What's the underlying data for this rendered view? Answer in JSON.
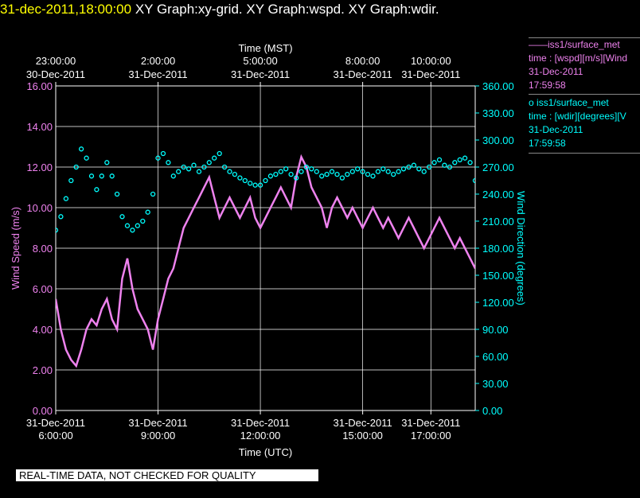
{
  "header": {
    "timestamp": "31-dec-2011,18:00:00",
    "graphs": [
      "XY Graph:xy-grid.",
      "XY Graph:wspd.",
      "XY Graph:wdir."
    ]
  },
  "legend": [
    {
      "marker": "——",
      "source": "iss1/surface_met",
      "series": "time : [wspd][m/s][Wind",
      "date": "31-Dec-2011",
      "time": "17:59:58",
      "color": "#ee82ee"
    },
    {
      "marker": "o",
      "source": "iss1/surface_met",
      "series": "time : [wdir][degrees][V",
      "date": "31-Dec-2011",
      "time": "17:59:58",
      "color": "#00ffff"
    }
  ],
  "footer": {
    "quality_note": "REAL-TIME DATA, NOT CHECKED FOR QUALITY"
  },
  "chart_data": {
    "type": "line",
    "xlabel_bottom": "Time (UTC)",
    "xlabel_top": "Time (MST)",
    "ylabel_left": "Wind Speed (m/s)",
    "ylabel_right": "Wind Direction (degrees)",
    "x_range_utc_hours": [
      6.0,
      18.3
    ],
    "ylim_left": [
      0,
      16
    ],
    "ylim_right": [
      0,
      360
    ],
    "grid": true,
    "colors": {
      "speed": "#ee82ee",
      "direction": "#00ffff",
      "grid": "#ffffff",
      "axis_right": "#00ffff"
    },
    "bottom_ticks": [
      {
        "hour": 6.0,
        "date": "31-Dec-2011",
        "time": "6:00:00"
      },
      {
        "hour": 9.0,
        "date": "31-Dec-2011",
        "time": "9:00:00"
      },
      {
        "hour": 12.0,
        "date": "31-Dec-2011",
        "time": "12:00:00"
      },
      {
        "hour": 15.0,
        "date": "31-Dec-2011",
        "time": "15:00:00"
      },
      {
        "hour": 17.0,
        "date": "31-Dec-2011",
        "time": "17:00:00"
      }
    ],
    "top_ticks": [
      {
        "hour": 6.0,
        "time": "23:00:00",
        "date": "30-Dec-2011"
      },
      {
        "hour": 9.0,
        "time": "2:00:00",
        "date": "31-Dec-2011"
      },
      {
        "hour": 12.0,
        "time": "5:00:00",
        "date": "31-Dec-2011"
      },
      {
        "hour": 15.0,
        "time": "8:00:00",
        "date": "31-Dec-2011"
      },
      {
        "hour": 17.0,
        "time": "10:00:00",
        "date": "31-Dec-2011"
      }
    ],
    "left_ticks": [
      "0.00",
      "2.00",
      "4.00",
      "6.00",
      "8.00",
      "10.00",
      "12.00",
      "14.00",
      "16.00"
    ],
    "right_ticks": [
      "0.00",
      "30.00",
      "60.00",
      "90.00",
      "120.00",
      "150.00",
      "180.00",
      "210.00",
      "240.00",
      "270.00",
      "300.00",
      "330.00",
      "360.00"
    ],
    "series": [
      {
        "name": "wspd",
        "axis": "left",
        "x": [
          6.0,
          6.15,
          6.3,
          6.45,
          6.6,
          6.75,
          6.9,
          7.05,
          7.2,
          7.35,
          7.5,
          7.65,
          7.8,
          7.95,
          8.1,
          8.25,
          8.4,
          8.55,
          8.7,
          8.85,
          9.0,
          9.15,
          9.3,
          9.45,
          9.6,
          9.75,
          9.9,
          10.05,
          10.2,
          10.35,
          10.5,
          10.65,
          10.8,
          10.95,
          11.1,
          11.25,
          11.4,
          11.55,
          11.7,
          11.85,
          12.0,
          12.15,
          12.3,
          12.45,
          12.6,
          12.75,
          12.9,
          13.05,
          13.2,
          13.35,
          13.5,
          13.65,
          13.8,
          13.95,
          14.1,
          14.25,
          14.4,
          14.55,
          14.7,
          14.85,
          15.0,
          15.15,
          15.3,
          15.45,
          15.6,
          15.75,
          15.9,
          16.05,
          16.2,
          16.35,
          16.5,
          16.65,
          16.8,
          16.95,
          17.1,
          17.25,
          17.4,
          17.55,
          17.7,
          17.85,
          18.0,
          18.15,
          18.3
        ],
        "values": [
          5.5,
          4.0,
          3.0,
          2.5,
          2.2,
          3.0,
          4.0,
          4.5,
          4.2,
          5.0,
          5.5,
          4.5,
          4.0,
          6.5,
          7.5,
          6.0,
          5.0,
          4.5,
          4.0,
          3.0,
          4.5,
          5.5,
          6.5,
          7.0,
          8.0,
          9.0,
          9.5,
          10.0,
          10.5,
          11.0,
          11.5,
          10.5,
          9.5,
          10.0,
          10.5,
          10.0,
          9.5,
          10.0,
          10.5,
          9.5,
          9.0,
          9.5,
          10.0,
          10.5,
          11.0,
          10.5,
          10.0,
          11.5,
          12.5,
          12.0,
          11.0,
          10.5,
          10.0,
          9.0,
          10.0,
          10.5,
          10.0,
          9.5,
          10.0,
          9.5,
          9.0,
          9.5,
          10.0,
          9.5,
          9.0,
          9.5,
          9.0,
          8.5,
          9.0,
          9.5,
          9.0,
          8.5,
          8.0,
          8.5,
          9.0,
          9.5,
          9.0,
          8.5,
          8.0,
          8.5,
          8.0,
          7.5,
          7.0
        ]
      },
      {
        "name": "wdir",
        "axis": "right",
        "x": [
          6.0,
          6.15,
          6.3,
          6.45,
          6.6,
          6.75,
          6.9,
          7.05,
          7.2,
          7.35,
          7.5,
          7.65,
          7.8,
          7.95,
          8.1,
          8.25,
          8.4,
          8.55,
          8.7,
          8.85,
          9.0,
          9.15,
          9.3,
          9.45,
          9.6,
          9.75,
          9.9,
          10.05,
          10.2,
          10.35,
          10.5,
          10.65,
          10.8,
          10.95,
          11.1,
          11.25,
          11.4,
          11.55,
          11.7,
          11.85,
          12.0,
          12.15,
          12.3,
          12.45,
          12.6,
          12.75,
          12.9,
          13.05,
          13.2,
          13.35,
          13.5,
          13.65,
          13.8,
          13.95,
          14.1,
          14.25,
          14.4,
          14.55,
          14.7,
          14.85,
          15.0,
          15.15,
          15.3,
          15.45,
          15.6,
          15.75,
          15.9,
          16.05,
          16.2,
          16.35,
          16.5,
          16.65,
          16.8,
          16.95,
          17.1,
          17.25,
          17.4,
          17.55,
          17.7,
          17.85,
          18.0,
          18.15,
          18.3
        ],
        "values": [
          200,
          215,
          235,
          255,
          270,
          290,
          280,
          260,
          245,
          260,
          275,
          260,
          240,
          215,
          205,
          200,
          205,
          210,
          220,
          240,
          280,
          285,
          275,
          260,
          265,
          270,
          268,
          272,
          265,
          270,
          275,
          280,
          285,
          270,
          265,
          262,
          258,
          255,
          252,
          250,
          250,
          255,
          260,
          262,
          265,
          268,
          262,
          258,
          265,
          270,
          268,
          265,
          260,
          262,
          265,
          262,
          258,
          262,
          265,
          268,
          265,
          262,
          260,
          265,
          268,
          265,
          262,
          265,
          268,
          270,
          272,
          268,
          265,
          270,
          275,
          278,
          272,
          270,
          275,
          278,
          280,
          275,
          255
        ]
      }
    ]
  }
}
